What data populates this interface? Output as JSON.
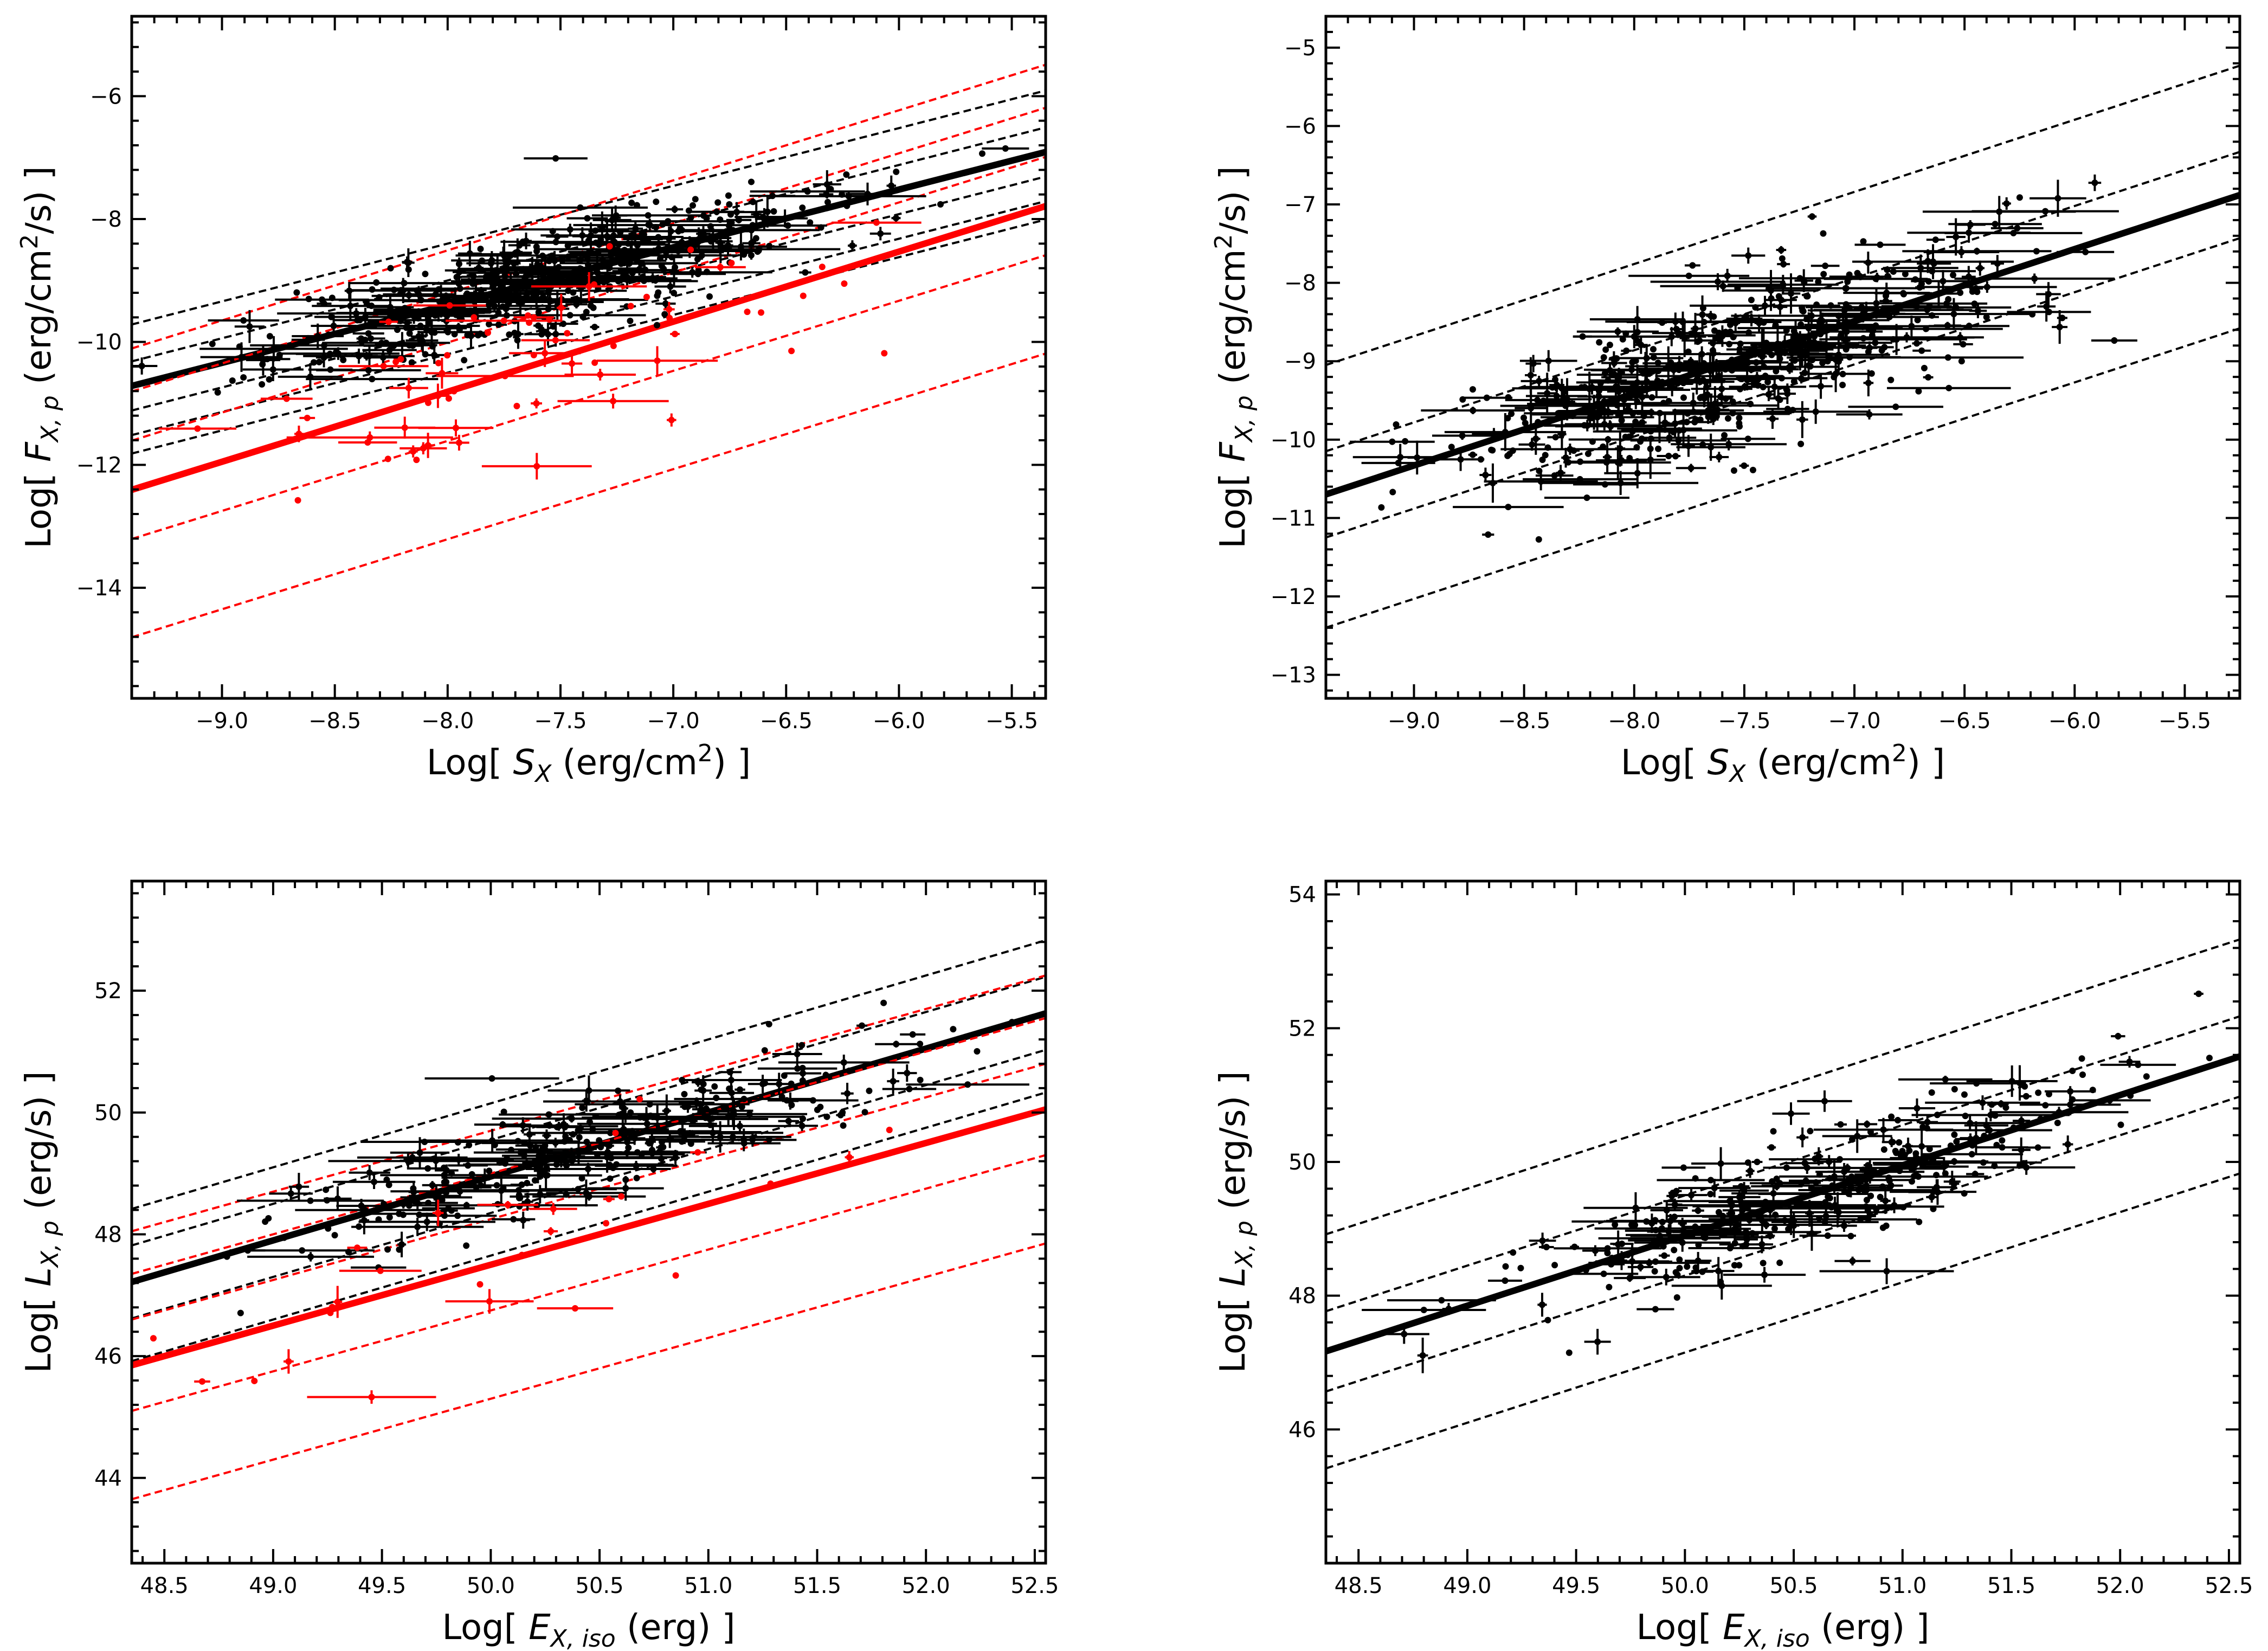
{
  "colors": {
    "black": "#000000",
    "red": "#ff0000"
  },
  "chart_data": [
    {
      "type": "scatter",
      "panel": "top-left",
      "xlabel": {
        "prefix": "Log[ ",
        "var": "S",
        "sub": "X",
        "unit": " (erg/cm",
        "sup": "2",
        "tail": ") ]"
      },
      "ylabel": {
        "prefix": "Log[ ",
        "var": "F",
        "sub": "X, p",
        "unit": " (erg/cm",
        "sup": "2",
        "tail": "/s) ]"
      },
      "xlim": [
        -9.4,
        -5.35
      ],
      "ylim": [
        -15.8,
        -4.7
      ],
      "xticks": [
        -9.0,
        -8.5,
        -8.0,
        -7.5,
        -7.0,
        -6.5,
        -6.0,
        -5.5
      ],
      "xtick_labels": [
        "−9.0",
        "−8.5",
        "−8.0",
        "−7.5",
        "−7.0",
        "−6.5",
        "−6.0",
        "−5.5"
      ],
      "yticks": [
        -14,
        -12,
        -10,
        -8,
        -6
      ],
      "ytick_labels": [
        "−14",
        "−12",
        "−10",
        "−8",
        "−6"
      ],
      "fits": [
        {
          "series": "black",
          "slope": 0.94,
          "intercept": -1.88,
          "offsets": [
            -1.1,
            -0.8,
            -0.4,
            0.4,
            1.0
          ]
        },
        {
          "series": "red",
          "slope": 1.14,
          "intercept": -1.69,
          "offsets": [
            -2.4,
            -0.8,
            0.8,
            1.6,
            2.3
          ]
        }
      ],
      "series": [
        {
          "name": "black",
          "color": "#000000",
          "n": 520,
          "slope": 0.94,
          "intercept": -1.88,
          "x_center": -7.55,
          "x_spread": 0.62,
          "scatter": 0.42,
          "seed": 11
        },
        {
          "name": "red",
          "color": "#ff0000",
          "n": 70,
          "slope": 1.14,
          "intercept": -1.69,
          "x_center": -7.6,
          "x_spread": 0.6,
          "scatter": 0.75,
          "seed": 23
        }
      ]
    },
    {
      "type": "scatter",
      "panel": "top-right",
      "xlabel": {
        "prefix": "Log[ ",
        "var": "S",
        "sub": "X",
        "unit": " (erg/cm",
        "sup": "2",
        "tail": ") ]"
      },
      "ylabel": {
        "prefix": "Log[ ",
        "var": "F",
        "sub": "X, p",
        "unit": " (erg/cm",
        "sup": "2",
        "tail": "/s) ]"
      },
      "xlim": [
        -9.4,
        -5.25
      ],
      "ylim": [
        -13.3,
        -4.6
      ],
      "xticks": [
        -9.0,
        -8.5,
        -8.0,
        -7.5,
        -7.0,
        -6.5,
        -6.0,
        -5.5
      ],
      "xtick_labels": [
        "−9.0",
        "−8.5",
        "−8.0",
        "−7.5",
        "−7.0",
        "−6.5",
        "−6.0",
        "−5.5"
      ],
      "yticks": [
        -13,
        -12,
        -11,
        -10,
        -9,
        -8,
        -7,
        -6,
        -5
      ],
      "ytick_labels": [
        "−13",
        "−12",
        "−11",
        "−10",
        "−9",
        "−8",
        "−7",
        "−6",
        "−5"
      ],
      "fits": [
        {
          "series": "black",
          "slope": 0.92,
          "intercept": -2.05,
          "offsets": [
            -1.7,
            -0.55,
            0.55,
            1.65
          ]
        }
      ],
      "series": [
        {
          "name": "black",
          "color": "#000000",
          "n": 600,
          "slope": 0.92,
          "intercept": -2.05,
          "x_center": -7.55,
          "x_spread": 0.62,
          "scatter": 0.5,
          "seed": 37
        }
      ]
    },
    {
      "type": "scatter",
      "panel": "bottom-left",
      "xlabel": {
        "prefix": "Log[ ",
        "var": "E",
        "sub": "X, iso",
        "unit": " (erg)",
        "sup": "",
        "tail": " ]"
      },
      "ylabel": {
        "prefix": "Log[ ",
        "var": "L",
        "sub": "X, p",
        "unit": " (erg/s)",
        "sup": "",
        "tail": " ]"
      },
      "xlim": [
        48.35,
        52.55
      ],
      "ylim": [
        42.6,
        53.8
      ],
      "xticks": [
        48.5,
        49.0,
        49.5,
        50.0,
        50.5,
        51.0,
        51.5,
        52.0,
        52.5
      ],
      "xtick_labels": [
        "48.5",
        "49.0",
        "49.5",
        "50.0",
        "50.5",
        "51.0",
        "51.5",
        "52.0",
        "52.5"
      ],
      "yticks": [
        44,
        46,
        48,
        50,
        52
      ],
      "ytick_labels": [
        "44",
        "46",
        "48",
        "50",
        "52"
      ],
      "fits": [
        {
          "series": "black",
          "slope": 1.05,
          "intercept": -3.55,
          "offsets": [
            -1.3,
            -0.6,
            0.6,
            1.2
          ]
        },
        {
          "series": "red",
          "slope": 1.0,
          "intercept": -2.5,
          "offsets": [
            -2.2,
            -0.75,
            0.75,
            1.5,
            2.2
          ]
        }
      ],
      "series": [
        {
          "name": "black",
          "color": "#000000",
          "n": 330,
          "slope": 1.05,
          "intercept": -3.55,
          "x_center": 50.5,
          "x_spread": 0.72,
          "scatter": 0.42,
          "seed": 51
        },
        {
          "name": "red",
          "color": "#ff0000",
          "n": 28,
          "slope": 1.0,
          "intercept": -2.5,
          "x_center": 50.3,
          "x_spread": 0.8,
          "scatter": 0.8,
          "seed": 67
        }
      ]
    },
    {
      "type": "scatter",
      "panel": "bottom-right",
      "xlabel": {
        "prefix": "Log[ ",
        "var": "E",
        "sub": "X, iso",
        "unit": " (erg)",
        "sup": "",
        "tail": " ]"
      },
      "ylabel": {
        "prefix": "Log[ ",
        "var": "L",
        "sub": "X, p",
        "unit": " (erg/s)",
        "sup": "",
        "tail": " ]"
      },
      "xlim": [
        48.35,
        52.55
      ],
      "ylim": [
        44.0,
        54.2
      ],
      "xticks": [
        48.5,
        49.0,
        49.5,
        50.0,
        50.5,
        51.0,
        51.5,
        52.0,
        52.5
      ],
      "xtick_labels": [
        "48.5",
        "49.0",
        "49.5",
        "50.0",
        "50.5",
        "51.0",
        "51.5",
        "52.0",
        "52.5"
      ],
      "yticks": [
        46,
        48,
        50,
        52,
        54
      ],
      "ytick_labels": [
        "46",
        "48",
        "50",
        "52",
        "54"
      ],
      "fits": [
        {
          "series": "black",
          "slope": 1.05,
          "intercept": -3.6,
          "offsets": [
            -1.75,
            -0.6,
            0.6,
            1.75
          ]
        }
      ],
      "series": [
        {
          "name": "black",
          "color": "#000000",
          "n": 360,
          "slope": 1.05,
          "intercept": -3.6,
          "x_center": 50.6,
          "x_spread": 0.72,
          "scatter": 0.45,
          "seed": 83
        }
      ]
    }
  ]
}
